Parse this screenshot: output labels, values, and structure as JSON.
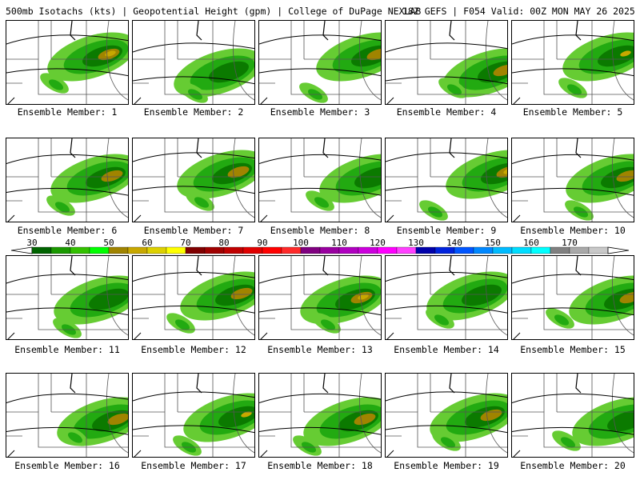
{
  "header": {
    "left": "500mb Isotachs (kts) | Geopotential Height (gpm) | College of DuPage NEXLAB",
    "right": "18Z GEFS | F054 Valid: 00Z MON MAY 26 2025"
  },
  "colorbar": {
    "labels": [
      "30",
      "40",
      "50",
      "60",
      "70",
      "80",
      "90",
      "100",
      "110",
      "120",
      "130",
      "140",
      "150",
      "160",
      "170"
    ],
    "colors": [
      "#006400",
      "#1a9900",
      "#33c100",
      "#00ff00",
      "#a08400",
      "#c8a800",
      "#ddd000",
      "#ffff00",
      "#800000",
      "#a00000",
      "#c00000",
      "#e00000",
      "#ff0000",
      "#ff2a2a",
      "#800080",
      "#9900a0",
      "#b000c0",
      "#cc00dd",
      "#ff00ff",
      "#ff40ff",
      "#0000aa",
      "#0022dd",
      "#0055ff",
      "#0088ff",
      "#00bbff",
      "#00ddff",
      "#00ffff",
      "#808080",
      "#a9a9a9",
      "#c8c8c8"
    ]
  },
  "members": [
    {
      "label": "Ensemble Member: 1"
    },
    {
      "label": "Ensemble Member: 2"
    },
    {
      "label": "Ensemble Member: 3"
    },
    {
      "label": "Ensemble Member: 4"
    },
    {
      "label": "Ensemble Member: 5"
    },
    {
      "label": "Ensemble Member: 6"
    },
    {
      "label": "Ensemble Member: 7"
    },
    {
      "label": "Ensemble Member: 8"
    },
    {
      "label": "Ensemble Member: 9"
    },
    {
      "label": "Ensemble Member: 10"
    },
    {
      "label": "Ensemble Member: 11"
    },
    {
      "label": "Ensemble Member: 12"
    },
    {
      "label": "Ensemble Member: 13"
    },
    {
      "label": "Ensemble Member: 14"
    },
    {
      "label": "Ensemble Member: 15"
    },
    {
      "label": "Ensemble Member: 16"
    },
    {
      "label": "Ensemble Member: 17"
    },
    {
      "label": "Ensemble Member: 18"
    },
    {
      "label": "Ensemble Member: 19"
    },
    {
      "label": "Ensemble Member: 20"
    }
  ],
  "colors": {
    "light_green": "#66cc33",
    "mid_green": "#22aa11",
    "dark_green": "#0b7a00",
    "olive": "#a08400",
    "tan": "#c8a800"
  }
}
